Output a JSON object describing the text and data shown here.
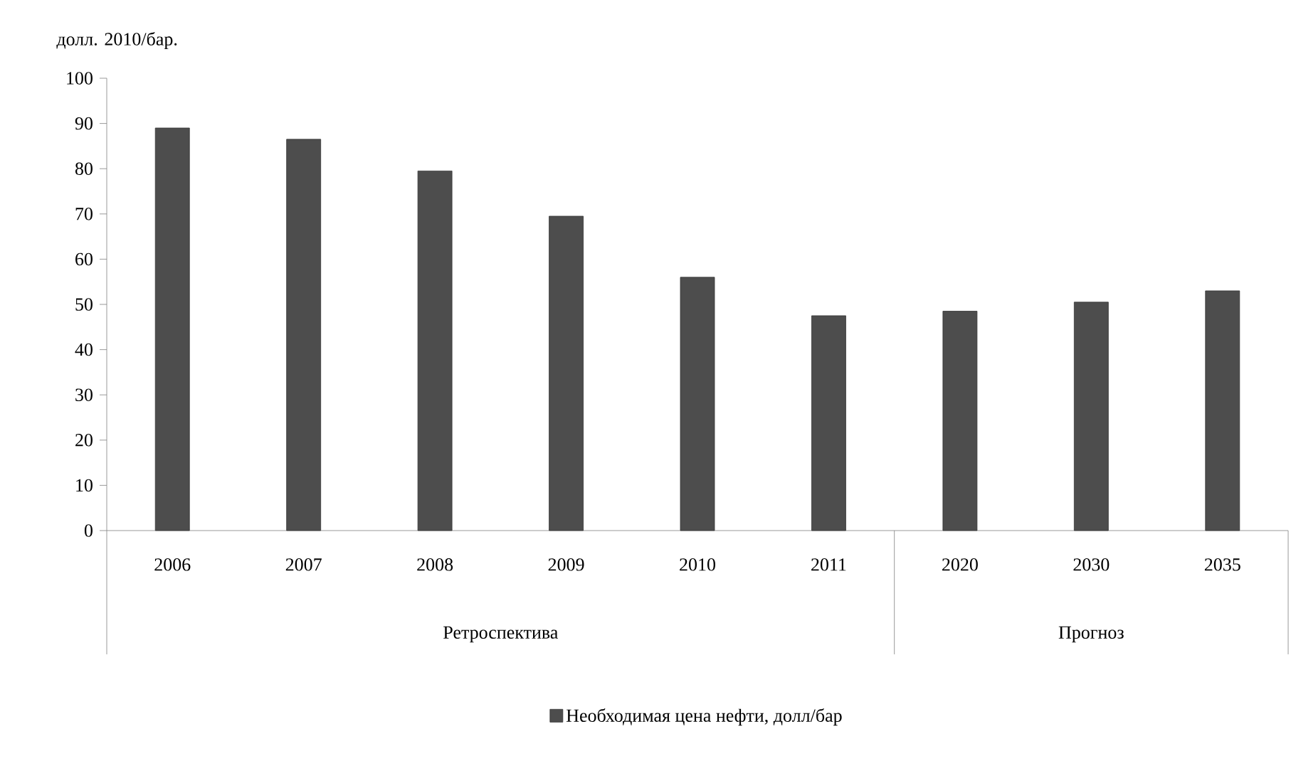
{
  "chart_data": {
    "type": "bar",
    "ylabel": "долл. 2010/бар.",
    "categories": [
      "2006",
      "2007",
      "2008",
      "2009",
      "2010",
      "2011",
      "2020",
      "2030",
      "2035"
    ],
    "series": [
      {
        "name": "Необходимая цена нефти, долл/бар",
        "color": "#4d4d4d",
        "values": [
          89,
          86.5,
          79.5,
          69.5,
          56,
          47.5,
          48.5,
          50.5,
          53
        ]
      }
    ],
    "ylim": [
      0,
      100
    ],
    "yticks": [
      0,
      10,
      20,
      30,
      40,
      50,
      60,
      70,
      80,
      90,
      100
    ],
    "annotations": [
      "Ретроспектива",
      "Прогноз"
    ],
    "legend": "bottom"
  }
}
